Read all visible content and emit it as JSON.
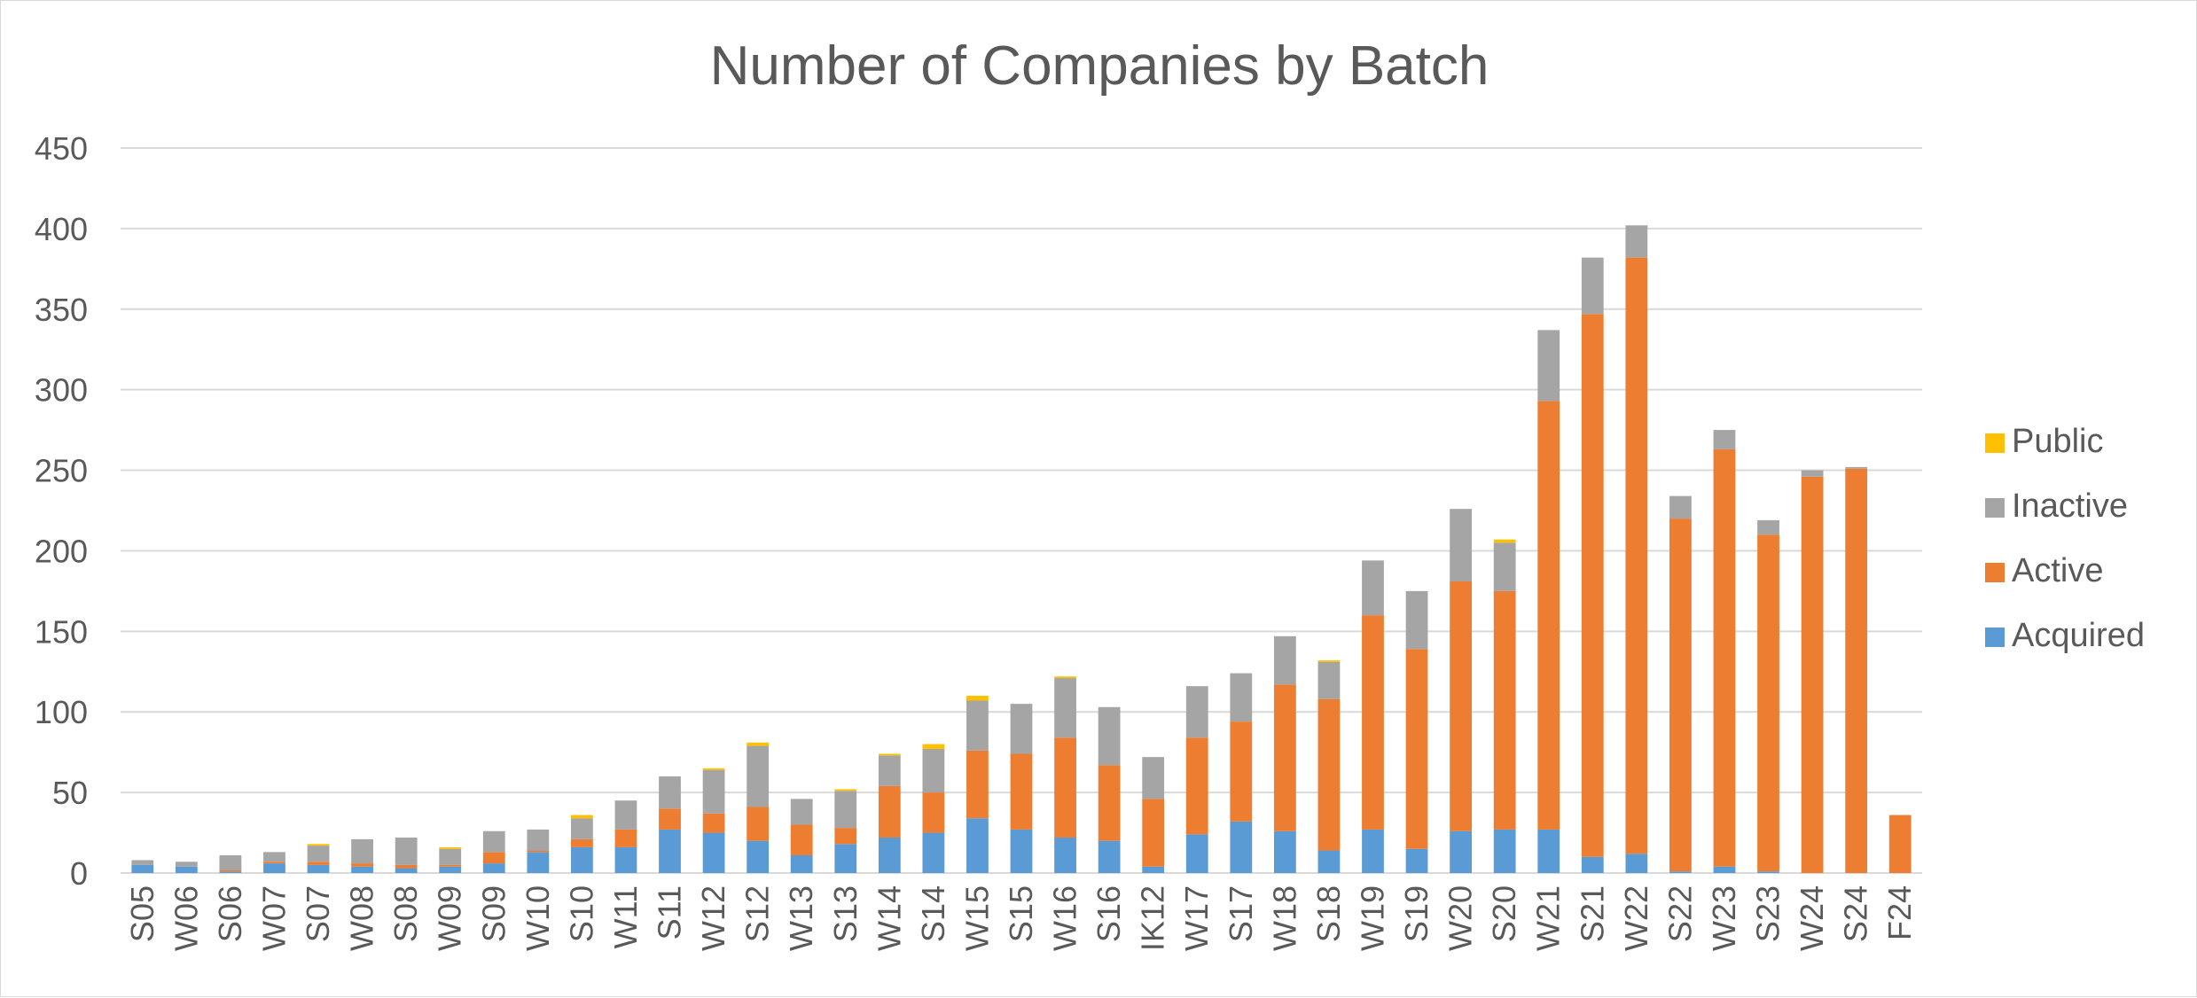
{
  "chart_data": {
    "type": "bar",
    "stacked": true,
    "title": "Number of Companies by Batch",
    "xlabel": "",
    "ylabel": "",
    "ylim": [
      0,
      450
    ],
    "yticks": [
      0,
      50,
      100,
      150,
      200,
      250,
      300,
      350,
      400,
      450
    ],
    "grid": true,
    "legend_position": "right",
    "categories": [
      "S05",
      "W06",
      "S06",
      "W07",
      "S07",
      "W08",
      "S08",
      "W09",
      "S09",
      "W10",
      "S10",
      "W11",
      "S11",
      "W12",
      "S12",
      "W13",
      "S13",
      "W14",
      "S14",
      "W15",
      "S15",
      "W16",
      "S16",
      "IK12",
      "W17",
      "S17",
      "W18",
      "S18",
      "W19",
      "S19",
      "W20",
      "S20",
      "W21",
      "S21",
      "W22",
      "S22",
      "W23",
      "S23",
      "W24",
      "S24",
      "F24"
    ],
    "series": [
      {
        "name": "Acquired",
        "color": "#5b9bd5",
        "values": [
          5,
          4,
          1,
          6,
          5,
          4,
          3,
          4,
          6,
          13,
          16,
          16,
          27,
          25,
          20,
          11,
          18,
          22,
          25,
          34,
          27,
          22,
          20,
          4,
          24,
          32,
          26,
          14,
          27,
          15,
          26,
          27,
          27,
          10,
          12,
          1,
          4,
          1,
          0,
          0,
          0
        ]
      },
      {
        "name": "Active",
        "color": "#ed7d31",
        "values": [
          0,
          0,
          1,
          1,
          2,
          2,
          2,
          1,
          7,
          1,
          5,
          11,
          13,
          12,
          21,
          19,
          10,
          32,
          25,
          42,
          47,
          62,
          47,
          42,
          60,
          62,
          91,
          94,
          133,
          124,
          155,
          148,
          266,
          337,
          370,
          219,
          259,
          209,
          246,
          251,
          36
        ]
      },
      {
        "name": "Inactive",
        "color": "#a5a5a5",
        "values": [
          3,
          3,
          9,
          6,
          10,
          15,
          17,
          10,
          13,
          13,
          13,
          18,
          20,
          27,
          38,
          16,
          23,
          19,
          27,
          31,
          31,
          37,
          36,
          26,
          32,
          30,
          30,
          23,
          34,
          36,
          45,
          30,
          44,
          35,
          20,
          14,
          12,
          9,
          4,
          1,
          0
        ]
      },
      {
        "name": "Public",
        "color": "#ffc000",
        "values": [
          0,
          0,
          0,
          0,
          1,
          0,
          0,
          1,
          0,
          0,
          2,
          0,
          0,
          1,
          2,
          0,
          1,
          1,
          3,
          3,
          0,
          1,
          0,
          0,
          0,
          0,
          0,
          1,
          0,
          0,
          0,
          2,
          0,
          0,
          0,
          0,
          0,
          0,
          0,
          0,
          0
        ]
      }
    ],
    "legend_order": [
      "Public",
      "Inactive",
      "Active",
      "Acquired"
    ]
  }
}
